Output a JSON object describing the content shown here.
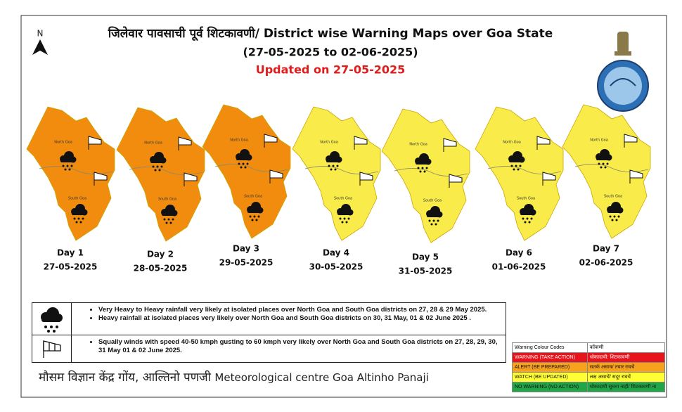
{
  "header": {
    "north_arrow": "N",
    "title_line1": "जिलेवार पावसाची पूर्व शिटकावणी/ District wise Warning Maps over Goa State",
    "title_line2": "(27-05-2025 to 02-06-2025)",
    "updated": "Updated on 27-05-2025"
  },
  "map": {
    "districts": [
      "North Goa",
      "South Goa"
    ],
    "days": [
      {
        "label": "Day 1",
        "date": "27-05-2025",
        "color": "#f28c0f"
      },
      {
        "label": "Day 2",
        "date": "28-05-2025",
        "color": "#f28c0f"
      },
      {
        "label": "Day 3",
        "date": "29-05-2025",
        "color": "#f28c0f"
      },
      {
        "label": "Day 4",
        "date": "30-05-2025",
        "color": "#f9ec4a"
      },
      {
        "label": "Day 5",
        "date": "31-05-2025",
        "color": "#f9ec4a"
      },
      {
        "label": "Day 6",
        "date": "01-06-2025",
        "color": "#f9ec4a"
      },
      {
        "label": "Day 7",
        "date": "02-06-2025",
        "color": "#f9ec4a"
      }
    ]
  },
  "notes": [
    {
      "bullets": [
        "Very Heavy to Heavy rainfall very likely at isolated places over North Goa and South Goa districts on 27, 28 & 29 May 2025.",
        "Heavy rainfall at isolated places very likely over North Goa and South Goa districts on 30, 31 May, 01 & 02 June 2025 ."
      ]
    },
    {
      "bullets": [
        "Squally winds with speed 40-50 kmph gusting to 60 kmph very likely  over North Goa and South Goa districts on 27, 28, 29, 30, 31 May 01 & 02 June 2025."
      ]
    }
  ],
  "legend": {
    "header": [
      "Warning Colour Codes",
      "कोंकणी"
    ],
    "rows": [
      {
        "en": "WARNING (TAKE ACTION)",
        "kok": "धोकादायी: शिटकावणी",
        "color": "#e8141b"
      },
      {
        "en": "ALERT (BE PREPARED)",
        "kok": "सतर्क असाव/ तयार रावचें",
        "color": "#f7a21c"
      },
      {
        "en": "WATCH (BE UPDATED)",
        "kok": "लक्ष असाचें/ सदूर रावचें",
        "color": "#ffff33"
      },
      {
        "en": "NO WARNING (NO ACTION)",
        "kok": "धोकादायी सूचना नाही/ शिटकावणी ना",
        "color": "#21a546"
      }
    ]
  },
  "footer": {
    "hindi": "मौसम विज्ञान केंद्र गोंय, आल्तिनो पणजी",
    "english": "Meteorological centre Goa Altinho Panaji"
  }
}
